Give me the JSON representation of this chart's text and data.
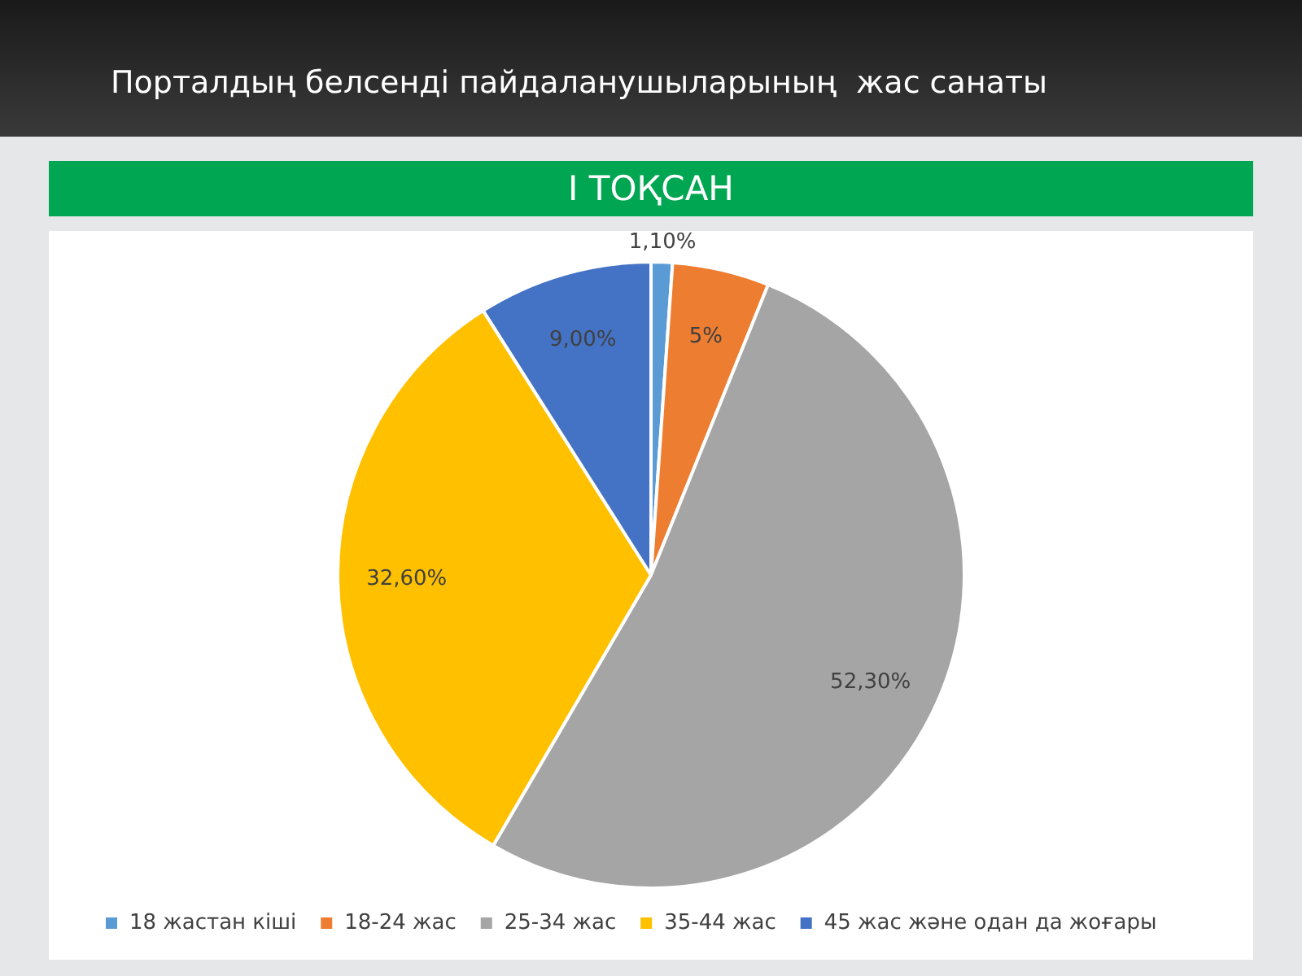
{
  "chart_data": {
    "type": "pie",
    "title": "Порталдың белсенді пайдаланушыларының  жас санаты",
    "subtitle": "I ТОҚСАН",
    "categories": [
      "18 жастан кіші",
      "18-24 жас",
      "25-34 жас",
      "35-44 жас",
      "45 жас және одан да жоғары"
    ],
    "values": [
      1.1,
      5,
      52.3,
      32.6,
      9.0
    ],
    "value_labels": [
      "1,10%",
      "5%",
      "52,30%",
      "32,60%",
      "9,00%"
    ],
    "colors": [
      "#5b9bd5",
      "#ed7d31",
      "#a5a5a5",
      "#ffc000",
      "#4472c4"
    ],
    "legend": "bottom"
  }
}
